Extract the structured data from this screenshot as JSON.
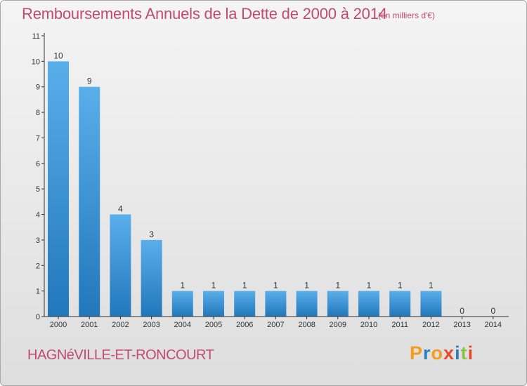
{
  "header": {
    "title": "Remboursements Annuels de la Dette de 2000 à 2014",
    "subtitle": "(en milliers d'€)"
  },
  "footer": {
    "commune": "HAGNéVILLE-ET-RONCOURT",
    "logo": "Proxiti"
  },
  "colors": {
    "title": "#c14a72",
    "bar_light": "#5aaeea",
    "bar_dark": "#2277bb",
    "logo_letters": [
      "#f39c1f",
      "#2b7fc1",
      "#f39c1f",
      "#e84a2a",
      "#2b7fc1",
      "#8bc34a",
      "#e84a2a"
    ]
  },
  "chart_data": {
    "type": "bar",
    "title": "Remboursements Annuels de la Dette de 2000 à 2014",
    "subtitle": "(en milliers d'€)",
    "xlabel": "",
    "ylabel": "",
    "categories": [
      "2000",
      "2001",
      "2002",
      "2003",
      "2004",
      "2005",
      "2006",
      "2007",
      "2008",
      "2009",
      "2010",
      "2011",
      "2012",
      "2013",
      "2014"
    ],
    "values": [
      10,
      9,
      4,
      3,
      1,
      1,
      1,
      1,
      1,
      1,
      1,
      1,
      1,
      0,
      0
    ],
    "data_labels": [
      "10",
      "9",
      "4",
      "3",
      "1",
      "1",
      "1",
      "1",
      "1",
      "1",
      "1",
      "1",
      "1",
      "0",
      "0"
    ],
    "ylim": [
      0,
      11
    ],
    "yticks": [
      "0",
      "1",
      "2",
      "3",
      "4",
      "5",
      "6",
      "7",
      "8",
      "9",
      "10",
      "11"
    ],
    "grid": false,
    "legend": "none"
  }
}
